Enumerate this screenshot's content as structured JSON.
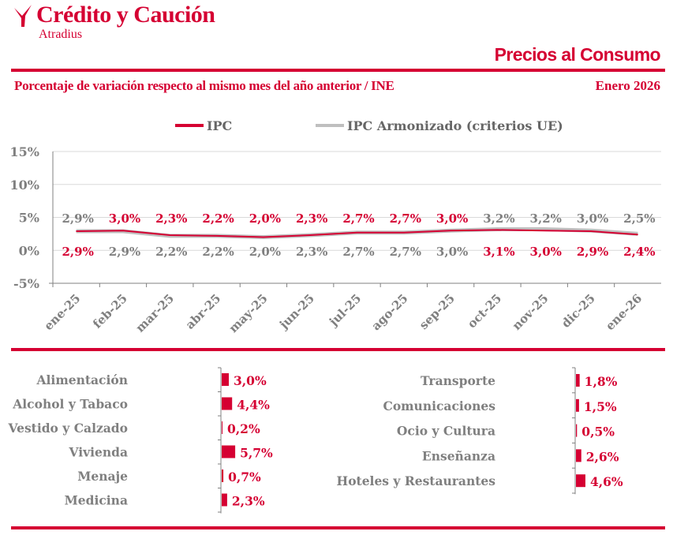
{
  "header": {
    "brand": "Crédito y Caución",
    "brand_sub": "Atradius",
    "title": "Precios al Consumo",
    "subtitle": "Porcentaje de variación respecto al mismo mes del año anterior / INE",
    "date": "Enero  2026"
  },
  "colors": {
    "accent": "#d50032",
    "gray": "#808080",
    "ipca_line": "#bfbfbf"
  },
  "chart_data": [
    {
      "type": "line",
      "categories": [
        "ene-25",
        "feb-25",
        "mar-25",
        "abr-25",
        "may-25",
        "jun-25",
        "jul-25",
        "ago-25",
        "sep-25",
        "oct-25",
        "nov-25",
        "dic-25",
        "ene-26"
      ],
      "ylim": [
        -5,
        15
      ],
      "yticks": [
        "-5%",
        "0%",
        "5%",
        "10%",
        "15%"
      ],
      "ytick_values": [
        -5,
        0,
        5,
        10,
        15
      ],
      "grid": true,
      "legend": "top",
      "series": [
        {
          "name": "IPC",
          "color": "#d50032",
          "values": [
            2.9,
            3.0,
            2.3,
            2.2,
            2.0,
            2.3,
            2.7,
            2.7,
            3.0,
            3.1,
            3.0,
            2.9,
            2.4
          ],
          "labels": [
            "2,9%",
            "3,0%",
            "2,3%",
            "2,2%",
            "2,0%",
            "2,3%",
            "2,7%",
            "2,7%",
            "3,0%",
            "3,1%",
            "3,0%",
            "2,9%",
            "2,4%"
          ]
        },
        {
          "name": "IPC Armonizado (criterios UE)",
          "color": "#bfbfbf",
          "values": [
            2.9,
            2.9,
            2.2,
            2.2,
            2.0,
            2.3,
            2.7,
            2.7,
            3.0,
            3.2,
            3.2,
            3.0,
            2.5
          ],
          "labels": [
            "2,9%",
            "2,9%",
            "2,2%",
            "2,2%",
            "2,0%",
            "2,3%",
            "2,7%",
            "2,7%",
            "3,0%",
            "3,2%",
            "3,2%",
            "3,0%",
            "2,5%"
          ]
        }
      ]
    },
    {
      "type": "bar",
      "orientation": "horizontal",
      "categories": [
        "Alimentación",
        "Alcohol y Tabaco",
        "Vestido y Calzado",
        "Vivienda",
        "Menaje",
        "Medicina"
      ],
      "values": [
        3.0,
        4.4,
        0.2,
        5.7,
        0.7,
        2.3
      ],
      "labels": [
        "3,0%",
        "4,4%",
        "0,2%",
        "5,7%",
        "0,7%",
        "2,3%"
      ]
    },
    {
      "type": "bar",
      "orientation": "horizontal",
      "categories": [
        "Transporte",
        "Comunicaciones",
        "Ocio y Cultura",
        "Enseñanza",
        "Hoteles y Restaurantes"
      ],
      "values": [
        1.8,
        1.5,
        0.5,
        2.6,
        4.6
      ],
      "labels": [
        "1,8%",
        "1,5%",
        "0,5%",
        "2,6%",
        "4,6%"
      ]
    }
  ]
}
